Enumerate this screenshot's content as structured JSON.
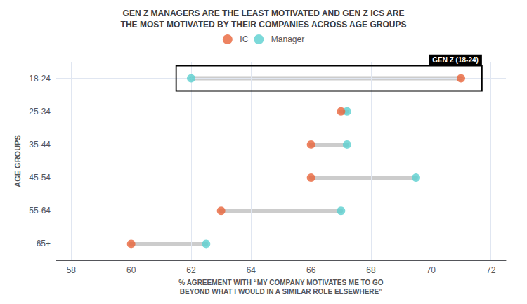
{
  "chart_data": {
    "type": "dumbbell",
    "title": "GEN Z MANAGERS ARE THE LEAST MOTIVATED AND GEN Z ICS ARE\nTHE MOST MOTIVATED BY THEIR COMPANIES ACROSS AGE GROUPS",
    "xlabel": "% AGREEMENT WITH “MY COMPANY MOTIVATES ME TO GO\nBEYOND WHAT I WOULD IN A SIMILAR ROLE ELSEWHERE”",
    "ylabel": "AGE GROUPS",
    "categories": [
      "18-24",
      "25-34",
      "35-44",
      "45-54",
      "55-64",
      "65+"
    ],
    "series": [
      {
        "name": "IC",
        "color": "#E8643A",
        "values": [
          71,
          67,
          66,
          66,
          63,
          60
        ]
      },
      {
        "name": "Manager",
        "color": "#5BCFCF",
        "values": [
          62,
          67.2,
          67.2,
          69.5,
          67,
          62.5
        ]
      }
    ],
    "connector_color": "#CCCCCC",
    "xlim": [
      57.5,
      72.5
    ],
    "xticks": [
      58,
      60,
      62,
      64,
      66,
      68,
      70,
      72
    ],
    "grid": true,
    "legend": "top",
    "marker": "circle",
    "annotations": [
      {
        "text": "GEN Z (18-24)",
        "category": "18-24",
        "x_range": [
          61.5,
          71.7
        ]
      }
    ]
  }
}
